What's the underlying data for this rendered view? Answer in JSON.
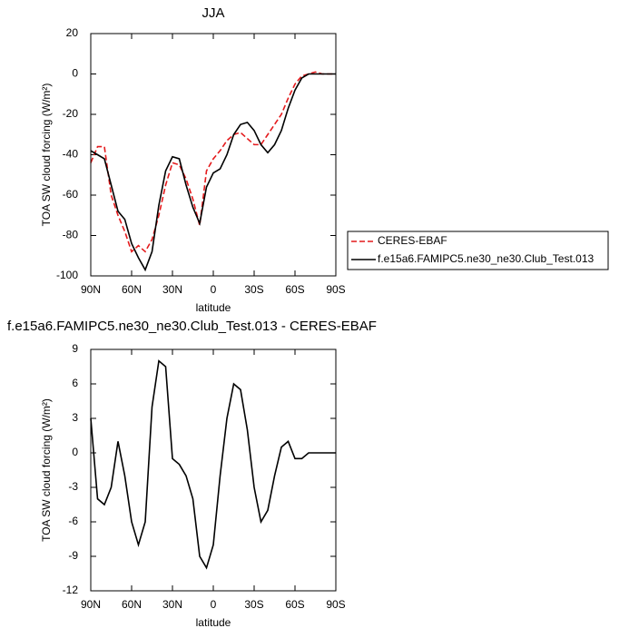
{
  "chart_data": [
    {
      "type": "line",
      "title": "JJA",
      "xlabel": "latitude",
      "ylabel": "TOA SW cloud forcing (W/m²)",
      "x": [
        90,
        85,
        80,
        75,
        70,
        65,
        60,
        55,
        50,
        45,
        40,
        35,
        30,
        25,
        20,
        15,
        10,
        5,
        0,
        -5,
        -10,
        -15,
        -20,
        -25,
        -30,
        -35,
        -40,
        -45,
        -50,
        -55,
        -60,
        -65,
        -70,
        -75,
        -80,
        -85,
        -90
      ],
      "series": [
        {
          "name": "CERES-EBAF",
          "color": "#e41a1c",
          "dash": true,
          "values": [
            -44,
            -36,
            -36,
            -60,
            -70,
            -78,
            -88,
            -85,
            -88,
            -82,
            -70,
            -55,
            -44,
            -45,
            -52,
            -62,
            -75,
            -48,
            -42,
            -38,
            -33,
            -30,
            -29,
            -32,
            -35,
            -35,
            -30,
            -25,
            -20,
            -12,
            -5,
            -1,
            0,
            1,
            0,
            0,
            0
          ]
        },
        {
          "name": "f.e15a6.FAMIPC5.ne30_ne30.Club_Test.013",
          "color": "#000000",
          "dash": false,
          "values": [
            -38,
            -40,
            -42,
            -55,
            -68,
            -72,
            -84,
            -91,
            -97,
            -88,
            -65,
            -48,
            -41,
            -42,
            -55,
            -66,
            -74,
            -56,
            -49,
            -47,
            -40,
            -30,
            -25,
            -24,
            -28,
            -35,
            -39,
            -35,
            -28,
            -17,
            -8,
            -2,
            0,
            0,
            0,
            0,
            0
          ]
        }
      ],
      "xlim": [
        90,
        -90
      ],
      "xticks": [
        {
          "value": 90,
          "label": "90N"
        },
        {
          "value": 60,
          "label": "60N"
        },
        {
          "value": 30,
          "label": "30N"
        },
        0,
        {
          "value": -30,
          "label": "30S"
        },
        {
          "value": -60,
          "label": "60S"
        },
        {
          "value": -90,
          "label": "90S"
        }
      ],
      "ylim": [
        -100,
        20
      ],
      "yticks": [
        20,
        0,
        -20,
        -40,
        -60,
        -80,
        -100
      ],
      "legend": "right"
    },
    {
      "type": "line",
      "title": "f.e15a6.FAMIPC5.ne30_ne30.Club_Test.013 - CERES-EBAF",
      "xlabel": "latitude",
      "ylabel": "TOA SW cloud forcing (W/m²)",
      "x": [
        90,
        85,
        80,
        75,
        70,
        65,
        60,
        55,
        50,
        45,
        40,
        35,
        30,
        25,
        20,
        15,
        10,
        5,
        0,
        -5,
        -10,
        -15,
        -20,
        -25,
        -30,
        -35,
        -40,
        -45,
        -50,
        -55,
        -60,
        -65,
        -70,
        -75,
        -80,
        -85,
        -90
      ],
      "series": [
        {
          "color": "#000000",
          "dash": false,
          "values": [
            3,
            -4,
            -4.5,
            -3,
            1,
            -2,
            -6,
            -8,
            -6,
            4,
            8,
            7.5,
            -0.5,
            -1,
            -2,
            -4,
            -9,
            -10,
            -8,
            -2,
            3,
            6,
            5.5,
            2,
            -3,
            -6,
            -5,
            -2,
            0.5,
            1,
            -0.5,
            -0.5,
            0,
            0,
            0,
            0,
            0
          ]
        }
      ],
      "xlim": [
        90,
        -90
      ],
      "xticks": [
        {
          "value": 90,
          "label": "90N"
        },
        {
          "value": 60,
          "label": "60N"
        },
        {
          "value": 30,
          "label": "30N"
        },
        0,
        {
          "value": -30,
          "label": "30S"
        },
        {
          "value": -60,
          "label": "60S"
        },
        {
          "value": -90,
          "label": "90S"
        }
      ],
      "ylim": [
        -12,
        9
      ],
      "yticks": [
        9,
        6,
        3,
        0,
        -3,
        -6,
        -9,
        -12
      ]
    }
  ]
}
